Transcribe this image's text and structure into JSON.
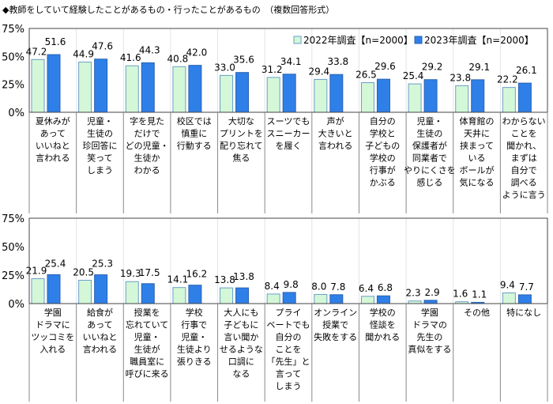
{
  "title": "◆教師をしていて経験したことがあるもの・行ったことがあるもの　（複数回答形式）",
  "colors": {
    "y2022": "#d4f7d8",
    "y2022_border": "#6a9ec9",
    "y2023": "#2f7fe8",
    "y2023_border": "#2a62b0"
  },
  "chart_data": [
    {
      "type": "bar",
      "ylim": [
        0,
        75
      ],
      "yticks": [
        "0%",
        "25%",
        "50%",
        "75%"
      ],
      "grid": false,
      "legend": "top-right",
      "categories": [
        "夏休みが\nあって\nいいねと\n言われる",
        "児童・\n生徒の\n珍回答に\n笑って\nしまう",
        "字を見た\nだけで\nどの児童・\n生徒か\nわかる",
        "校区では\n慎重に\n行動する",
        "大切な\nプリントを\n配り忘れて\n焦る",
        "スーツでも\nスニーカー\nを履く",
        "声が\n大きいと\n言われる",
        "自分の\n学校と\n子どもの\n学校の\n行事が\nかぶる",
        "児童・\n生徒の\n保護者が\n同業者で\nやりにくさを\n感じる",
        "体育館の\n天井に\n挟まって\nいる\nボールが\n気になる",
        "わからない\nことを\n聞かれ、\nまずは\n自分で\n調べる\nように言う"
      ],
      "series": [
        {
          "name": "2022年調査【n=2000】",
          "values": [
            47.2,
            44.9,
            41.6,
            40.8,
            33.0,
            31.2,
            29.4,
            26.5,
            25.4,
            23.8,
            22.2
          ],
          "labels": [
            "47.2",
            "44.9",
            "41.6",
            "40.8",
            "33.0",
            "31.2",
            "29.4",
            "26.5",
            "25.4",
            "23.8",
            "22.2"
          ]
        },
        {
          "name": "2023年調査【n=2000】",
          "values": [
            51.6,
            47.6,
            44.3,
            42.0,
            35.6,
            34.1,
            33.8,
            29.6,
            29.2,
            29.1,
            26.1
          ],
          "labels": [
            "51.6",
            "47.6",
            "44.3",
            "42.0",
            "35.6",
            "34.1",
            "33.8",
            "29.6",
            "29.2",
            "29.1",
            "26.1"
          ]
        }
      ]
    },
    {
      "type": "bar",
      "ylim": [
        0,
        75
      ],
      "yticks": [
        "0%",
        "25%",
        "50%",
        "75%"
      ],
      "grid": false,
      "categories": [
        "学園\nドラマに\nツッコミを\n入れる",
        "給食が\nあって\nいいねと\n言われる",
        "授業を\n忘れていて\n児童・\n生徒が\n職員室に\n呼びに来る",
        "学校\n行事で\n児童・\n生徒より\n張りきる",
        "大人にも\n子どもに\n言い聞か\nせるような\n口調に\nなる",
        "プライ\nベートでも\n自分の\nことを\n「先生」と\n言って\nしまう",
        "オンライン\n授業で\n失敗をする",
        "学校の\n怪談を\n聞かれる",
        "学園\nドラマの\n先生の\n真似をする",
        "その他",
        "特になし"
      ],
      "series": [
        {
          "name": "2022年調査【n=2000】",
          "values": [
            21.9,
            20.5,
            19.3,
            14.1,
            13.8,
            8.4,
            8.0,
            6.4,
            2.3,
            1.6,
            9.4
          ],
          "labels": [
            "21.9",
            "20.5",
            "19.3",
            "14.1",
            "13.8",
            "8.4",
            "8.0",
            "6.4",
            "2.3",
            "1.6",
            "9.4"
          ]
        },
        {
          "name": "2023年調査【n=2000】",
          "values": [
            25.4,
            25.3,
            17.5,
            16.2,
            13.8,
            9.8,
            7.8,
            6.8,
            2.9,
            1.1,
            7.7
          ],
          "labels": [
            "25.4",
            "25.3",
            "17.5",
            "16.2",
            "13.8",
            "9.8",
            "7.8",
            "6.8",
            "2.9",
            "1.1",
            "7.7"
          ]
        }
      ]
    }
  ]
}
